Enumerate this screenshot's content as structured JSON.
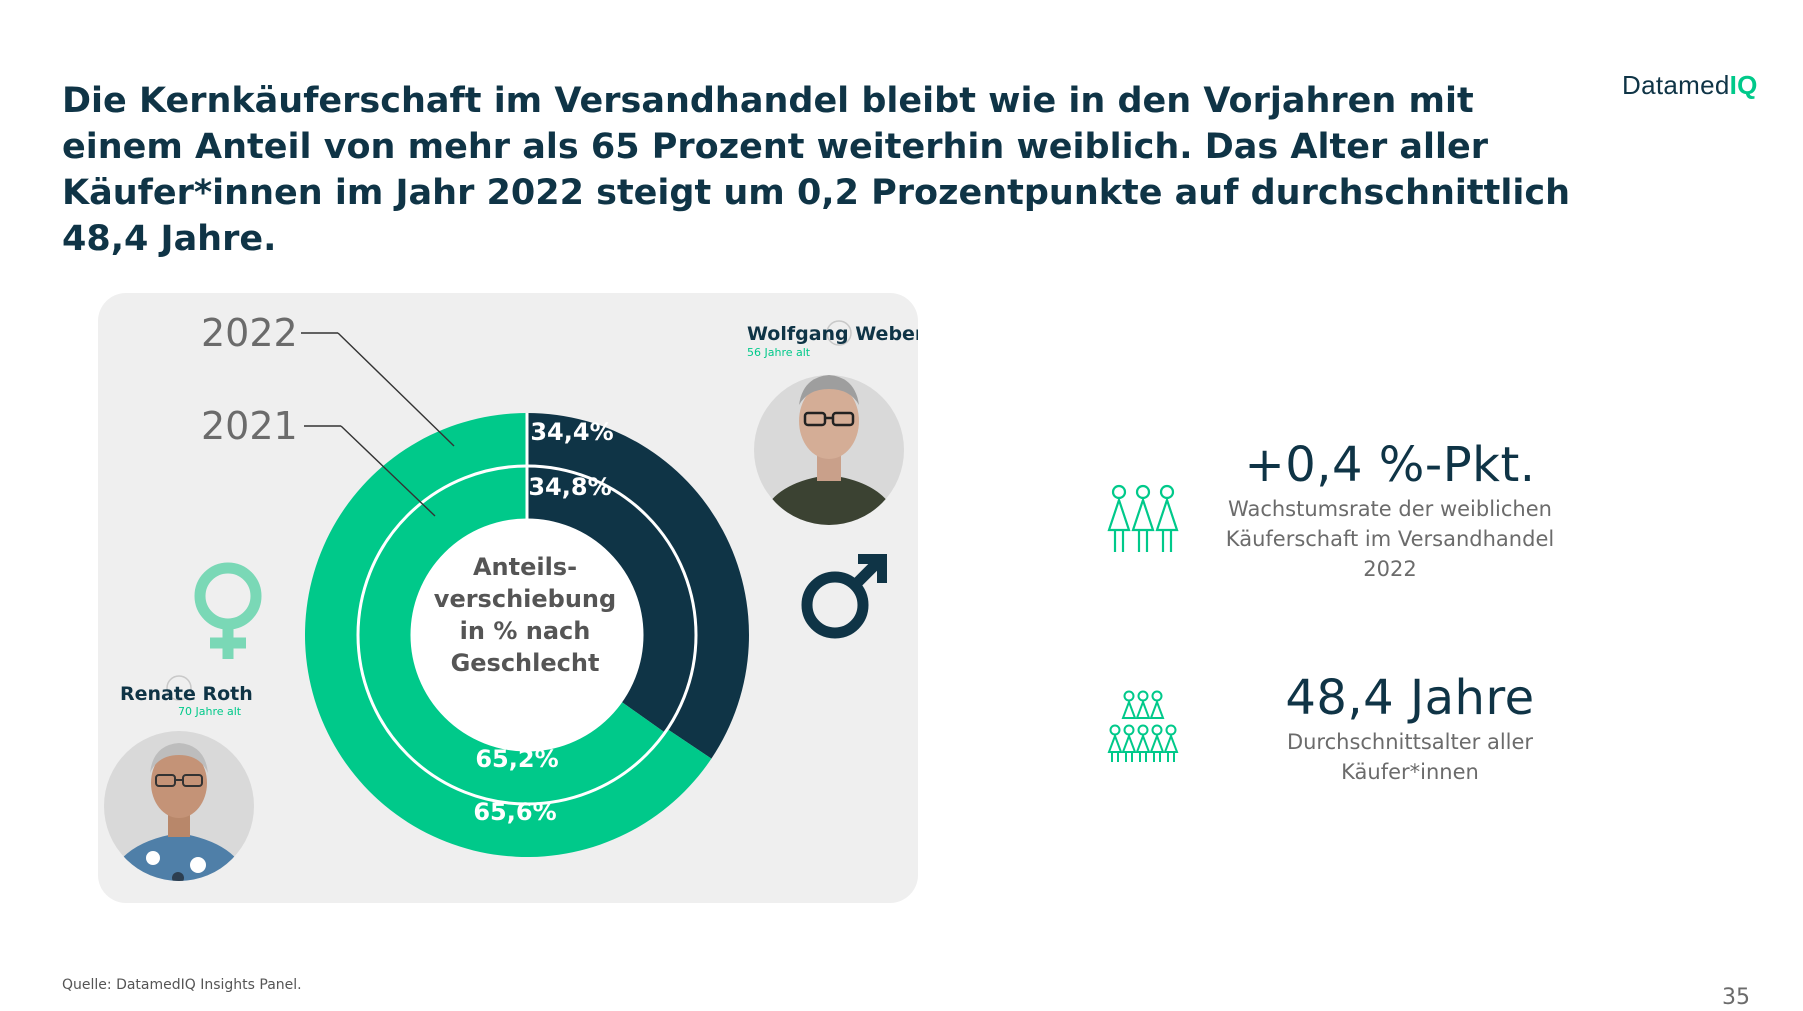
{
  "headline": "Die Kernkäuferschaft im Versandhandel bleibt wie in den Vorjahren mit einem Anteil von mehr als 65 Prozent weiterhin weiblich. Das Alter aller Käufer*innen im Jahr 2022 steigt um 0,2 Prozentpunkte auf durchschnittlich 48,4 Jahre.",
  "logo": {
    "text": "Datamed",
    "accent": "IQ"
  },
  "colors": {
    "female": "#00c98a",
    "male": "#0f3446",
    "panel": "#efefef"
  },
  "chart_data": {
    "type": "pie",
    "variant": "nested-donut",
    "center_label": [
      "Anteils-",
      "verschiebung",
      "in % nach",
      "Geschlecht"
    ],
    "categories": [
      "männlich",
      "weiblich"
    ],
    "series": [
      {
        "name": "2022",
        "ring": "outer",
        "values": [
          34.4,
          65.6
        ],
        "labels": [
          "34,4%",
          "65,6%"
        ]
      },
      {
        "name": "2021",
        "ring": "inner",
        "values": [
          34.8,
          65.2
        ],
        "labels": [
          "34,8%",
          "65,2%"
        ]
      }
    ]
  },
  "personas": {
    "male": {
      "name": "Wolfgang Weber",
      "age": "56 Jahre alt",
      "icon": "male-symbol-icon"
    },
    "female": {
      "name": "Renate Roth",
      "age": "70 Jahre alt",
      "icon": "female-symbol-icon"
    }
  },
  "kpis": [
    {
      "value": "+0,4 %-Pkt.",
      "desc": [
        "Wachstumsrate der weiblichen",
        "Käuferschaft im Versandhandel",
        "2022"
      ],
      "icon": "women-group-icon"
    },
    {
      "value": "48,4 Jahre",
      "desc": [
        "Durchschnittsalter aller",
        "Käufer*innen"
      ],
      "icon": "people-group-icon"
    }
  ],
  "source": "Quelle: DatamedIQ Insights Panel.",
  "page_number": "35"
}
